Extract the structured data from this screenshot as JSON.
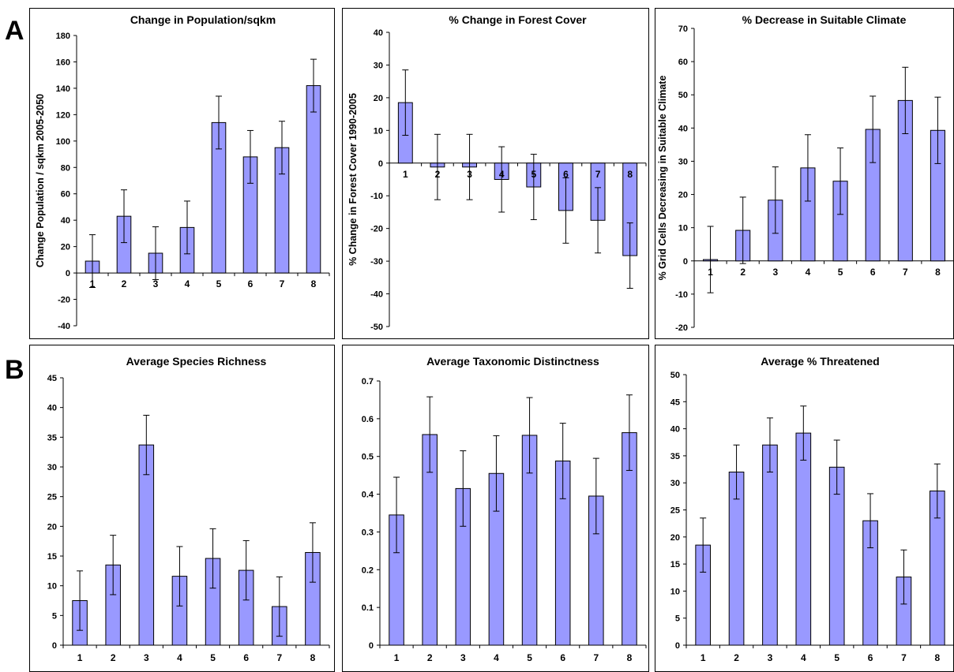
{
  "panel_labels": {
    "a": "A",
    "b": "B"
  },
  "colors": {
    "bar_fill": "#9999ff",
    "bar_stroke": "#000000",
    "frame": "#000000"
  },
  "chart_data": [
    {
      "type": "bar",
      "title": "Change in Population/sqkm",
      "ylabel": "Change Population / sqkm 2005-2050",
      "categories": [
        "1",
        "2",
        "3",
        "4",
        "5",
        "6",
        "7",
        "8"
      ],
      "values": [
        9,
        43,
        15,
        34.5,
        114,
        88,
        95,
        142
      ],
      "errors": [
        20,
        20,
        20,
        20,
        20,
        20,
        20,
        20
      ],
      "ylim": [
        -40,
        180
      ],
      "yticks": [
        -40,
        -20,
        0,
        20,
        40,
        60,
        80,
        100,
        120,
        140,
        160,
        180
      ],
      "category_labels_at_zero": true
    },
    {
      "type": "bar",
      "title": "% Change in Forest Cover",
      "ylabel": "% Change in Forest Cover 1990-2005",
      "categories": [
        "1",
        "2",
        "3",
        "4",
        "5",
        "6",
        "7",
        "8"
      ],
      "values": [
        18.5,
        -1.2,
        -1.2,
        -5,
        -7.3,
        -14.5,
        -17.5,
        -28.3
      ],
      "errors": [
        10,
        10,
        10,
        10,
        10,
        10,
        10,
        10
      ],
      "ylim": [
        -50,
        40
      ],
      "yticks": [
        -50,
        -40,
        -30,
        -20,
        -10,
        0,
        10,
        20,
        30,
        40
      ],
      "category_labels_at_zero": true
    },
    {
      "type": "bar",
      "title": "% Decrease in Suitable Climate",
      "ylabel": "% Grid Cells Decreasing in Suitable Climate",
      "categories": [
        "1",
        "2",
        "3",
        "4",
        "5",
        "6",
        "7",
        "8"
      ],
      "values": [
        0.4,
        9.2,
        18.3,
        28,
        24,
        39.6,
        48.3,
        39.3
      ],
      "errors": [
        10,
        10,
        10,
        10,
        10,
        10,
        10,
        10
      ],
      "ylim": [
        -20,
        70
      ],
      "yticks": [
        -20,
        -10,
        0,
        10,
        20,
        30,
        40,
        50,
        60,
        70
      ],
      "category_labels_at_zero": true
    },
    {
      "type": "bar",
      "title": "Average Species Richness",
      "ylabel": "",
      "categories": [
        "1",
        "2",
        "3",
        "4",
        "5",
        "6",
        "7",
        "8"
      ],
      "values": [
        7.5,
        13.5,
        33.7,
        11.6,
        14.6,
        12.6,
        6.5,
        15.6
      ],
      "errors": [
        5,
        5,
        5,
        5,
        5,
        5,
        5,
        5
      ],
      "ylim": [
        0,
        45
      ],
      "yticks": [
        0,
        5,
        10,
        15,
        20,
        25,
        30,
        35,
        40,
        45
      ],
      "category_labels_at_zero": false
    },
    {
      "type": "bar",
      "title": "Average Taxonomic Distinctness",
      "ylabel": "",
      "categories": [
        "1",
        "2",
        "3",
        "4",
        "5",
        "6",
        "7",
        "8"
      ],
      "values": [
        0.345,
        0.558,
        0.415,
        0.455,
        0.556,
        0.488,
        0.395,
        0.563
      ],
      "errors": [
        0.1,
        0.1,
        0.1,
        0.1,
        0.1,
        0.1,
        0.1,
        0.1
      ],
      "ylim": [
        0,
        0.7
      ],
      "yticks": [
        0,
        0.1,
        0.2,
        0.3,
        0.4,
        0.5,
        0.6,
        0.7
      ],
      "category_labels_at_zero": false
    },
    {
      "type": "bar",
      "title": "Average % Threatened",
      "ylabel": "",
      "categories": [
        "1",
        "2",
        "3",
        "4",
        "5",
        "6",
        "7",
        "8"
      ],
      "values": [
        18.5,
        32,
        37,
        39.2,
        32.9,
        23,
        12.6,
        28.5
      ],
      "errors": [
        5,
        5,
        5,
        5,
        5,
        5,
        5,
        5
      ],
      "ylim": [
        0,
        50
      ],
      "yticks": [
        0,
        5,
        10,
        15,
        20,
        25,
        30,
        35,
        40,
        45,
        50
      ],
      "category_labels_at_zero": false
    }
  ]
}
